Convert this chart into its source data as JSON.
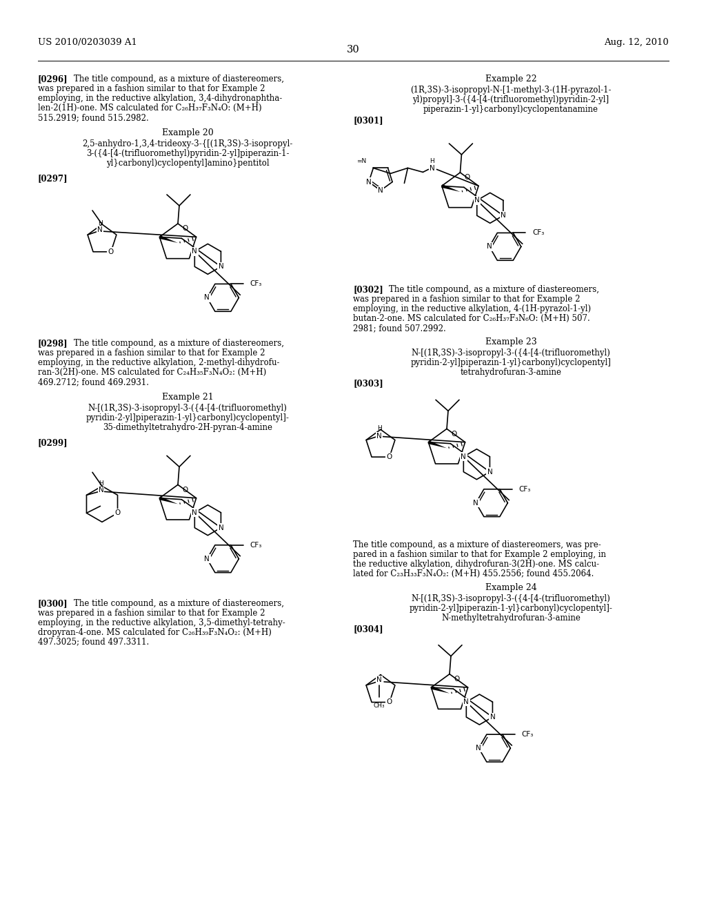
{
  "background_color": "#ffffff",
  "header_left": "US 2010/0203039 A1",
  "header_right": "Aug. 12, 2010",
  "page_number": "30",
  "body_fontsize": 8.5,
  "tag_fontsize": 8.5,
  "example_fontsize": 8.5,
  "compound_fontsize": 8.5
}
